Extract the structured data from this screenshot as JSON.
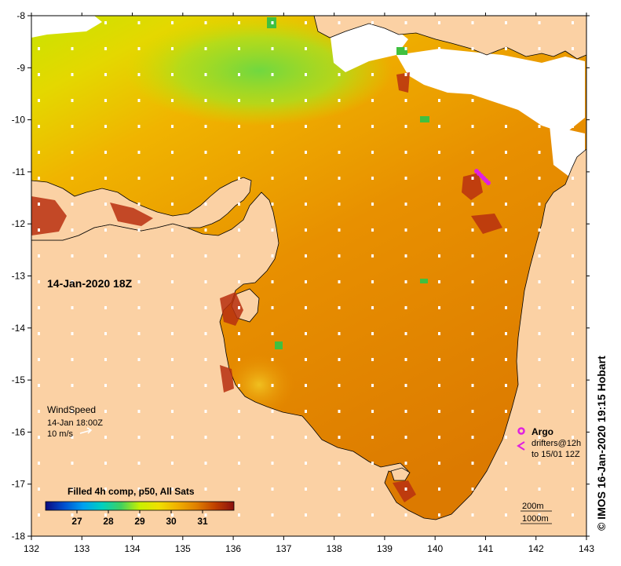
{
  "map": {
    "lon_range": [
      132,
      143
    ],
    "lat_range": [
      -18,
      -8
    ],
    "lon_ticks": [
      "132",
      "133",
      "134",
      "135",
      "136",
      "137",
      "138",
      "139",
      "140",
      "141",
      "142",
      "143"
    ],
    "lat_ticks": [
      "-8",
      "-9",
      "-10",
      "-11",
      "-12",
      "-13",
      "-14",
      "-15",
      "-16",
      "-17",
      "-18"
    ],
    "timestamp": "14-Jan-2020 18Z",
    "credit": "© IMOS 16-Jan-2020 19:15 Hobart"
  },
  "wind": {
    "label": "WindSpeed",
    "time": "14-Jan 18:00Z",
    "scale": "10 m/s"
  },
  "argo": {
    "label": "Argo",
    "drifter_line1": "drifters@12h",
    "drifter_line2": "to 15/01 12Z"
  },
  "isobaths": {
    "line1": "200m",
    "line2": "1000m"
  },
  "colorbar": {
    "title": "Filled 4h comp, p50, All Sats",
    "min": 26,
    "max": 32,
    "ticks": [
      "27",
      "28",
      "29",
      "30",
      "31"
    ],
    "colors": [
      "#0a0a80",
      "#0050d0",
      "#00a0f0",
      "#00d0c0",
      "#40d060",
      "#c8f000",
      "#f0e000",
      "#f0b000",
      "#e08000",
      "#c04000",
      "#8a1010"
    ]
  },
  "colors": {
    "land": "#fbd1a4",
    "no_data": "#ffffff",
    "argo": "#e020e0"
  }
}
